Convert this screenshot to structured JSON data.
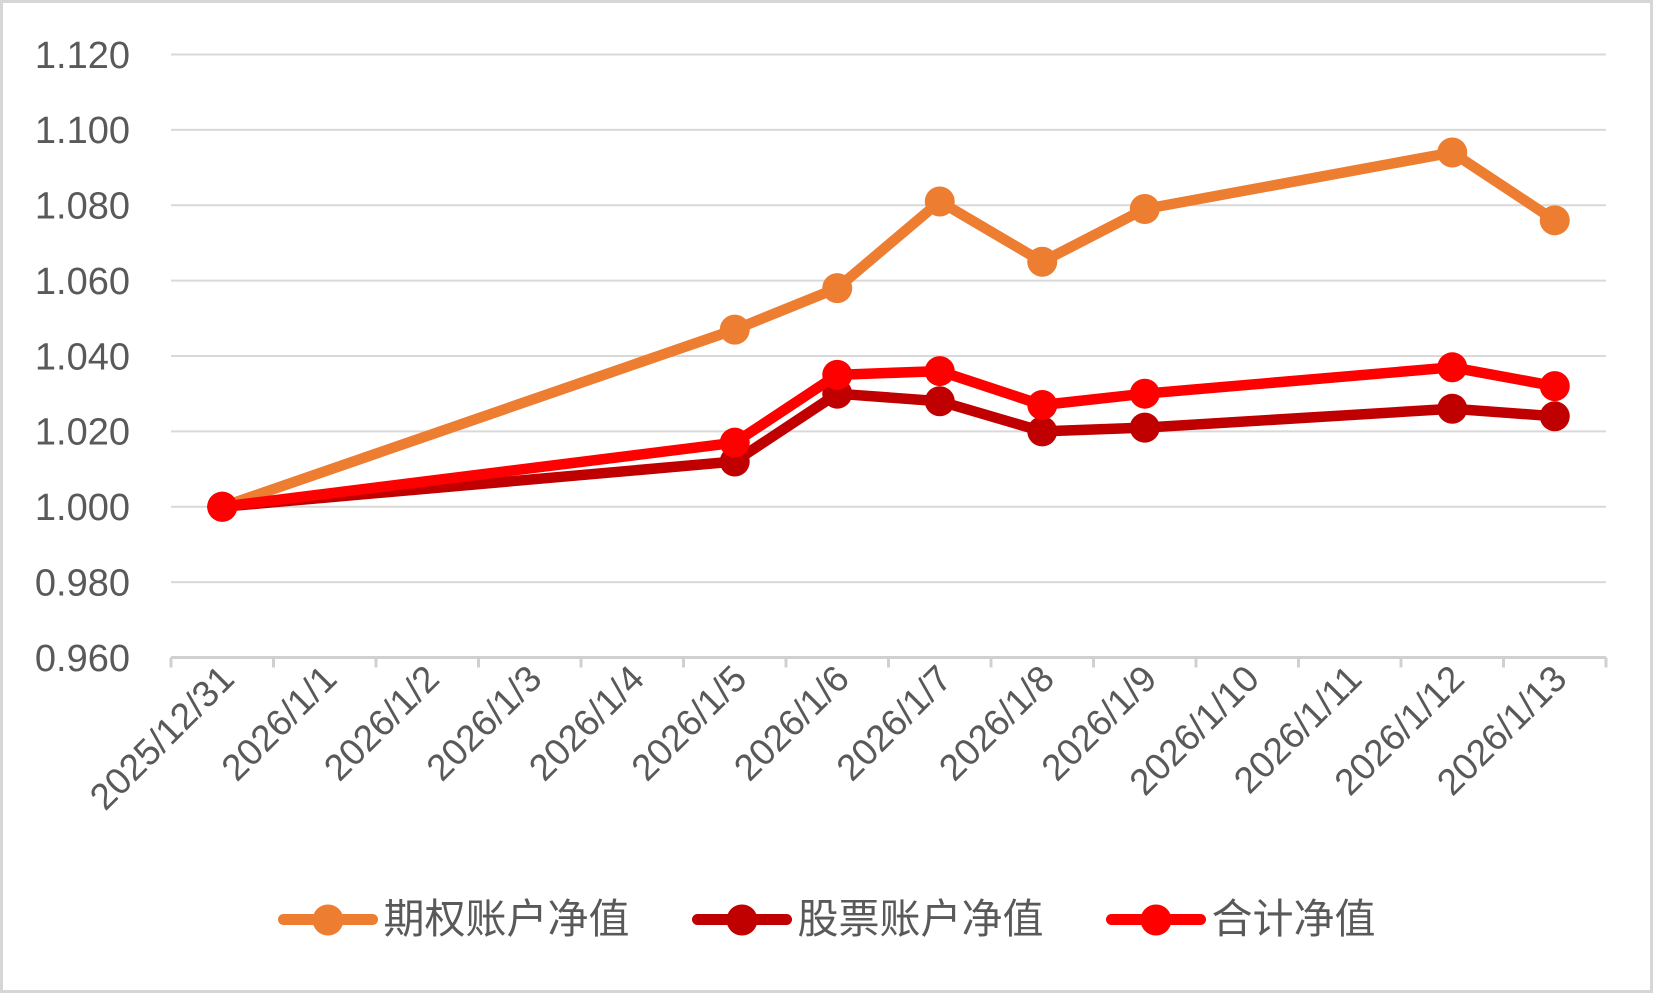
{
  "chart_data": {
    "type": "line",
    "title": "",
    "xlabel": "",
    "ylabel": "",
    "categories": [
      "2025/12/31",
      "2026/1/1",
      "2026/1/2",
      "2026/1/3",
      "2026/1/4",
      "2026/1/5",
      "2026/1/6",
      "2026/1/7",
      "2026/1/8",
      "2026/1/9",
      "2026/1/10",
      "2026/1/11",
      "2026/1/12",
      "2026/1/13"
    ],
    "ylim": [
      0.96,
      1.12
    ],
    "ystep": 0.02,
    "y_decimals": 3,
    "grid": true,
    "legend_position": "bottom",
    "axis_text_color": "#595959",
    "gridline_color": "#d9d9d9",
    "axis_line_color": "#d0d0d0",
    "series": [
      {
        "name": "期权账户净值",
        "color": "#ED7D31",
        "x": [
          "2025/12/31",
          "2026/1/5",
          "2026/1/6",
          "2026/1/7",
          "2026/1/8",
          "2026/1/9",
          "2026/1/12",
          "2026/1/13"
        ],
        "values": [
          1.0,
          1.047,
          1.058,
          1.081,
          1.065,
          1.079,
          1.094,
          1.076
        ]
      },
      {
        "name": "股票账户净值",
        "color": "#C00000",
        "x": [
          "2025/12/31",
          "2026/1/5",
          "2026/1/6",
          "2026/1/7",
          "2026/1/8",
          "2026/1/9",
          "2026/1/12",
          "2026/1/13"
        ],
        "values": [
          1.0,
          1.012,
          1.03,
          1.028,
          1.02,
          1.021,
          1.026,
          1.024
        ]
      },
      {
        "name": "合计净值",
        "color": "#FF0000",
        "x": [
          "2025/12/31",
          "2026/1/5",
          "2026/1/6",
          "2026/1/7",
          "2026/1/8",
          "2026/1/9",
          "2026/1/12",
          "2026/1/13"
        ],
        "values": [
          1.0,
          1.017,
          1.035,
          1.036,
          1.027,
          1.03,
          1.037,
          1.032
        ]
      }
    ]
  }
}
